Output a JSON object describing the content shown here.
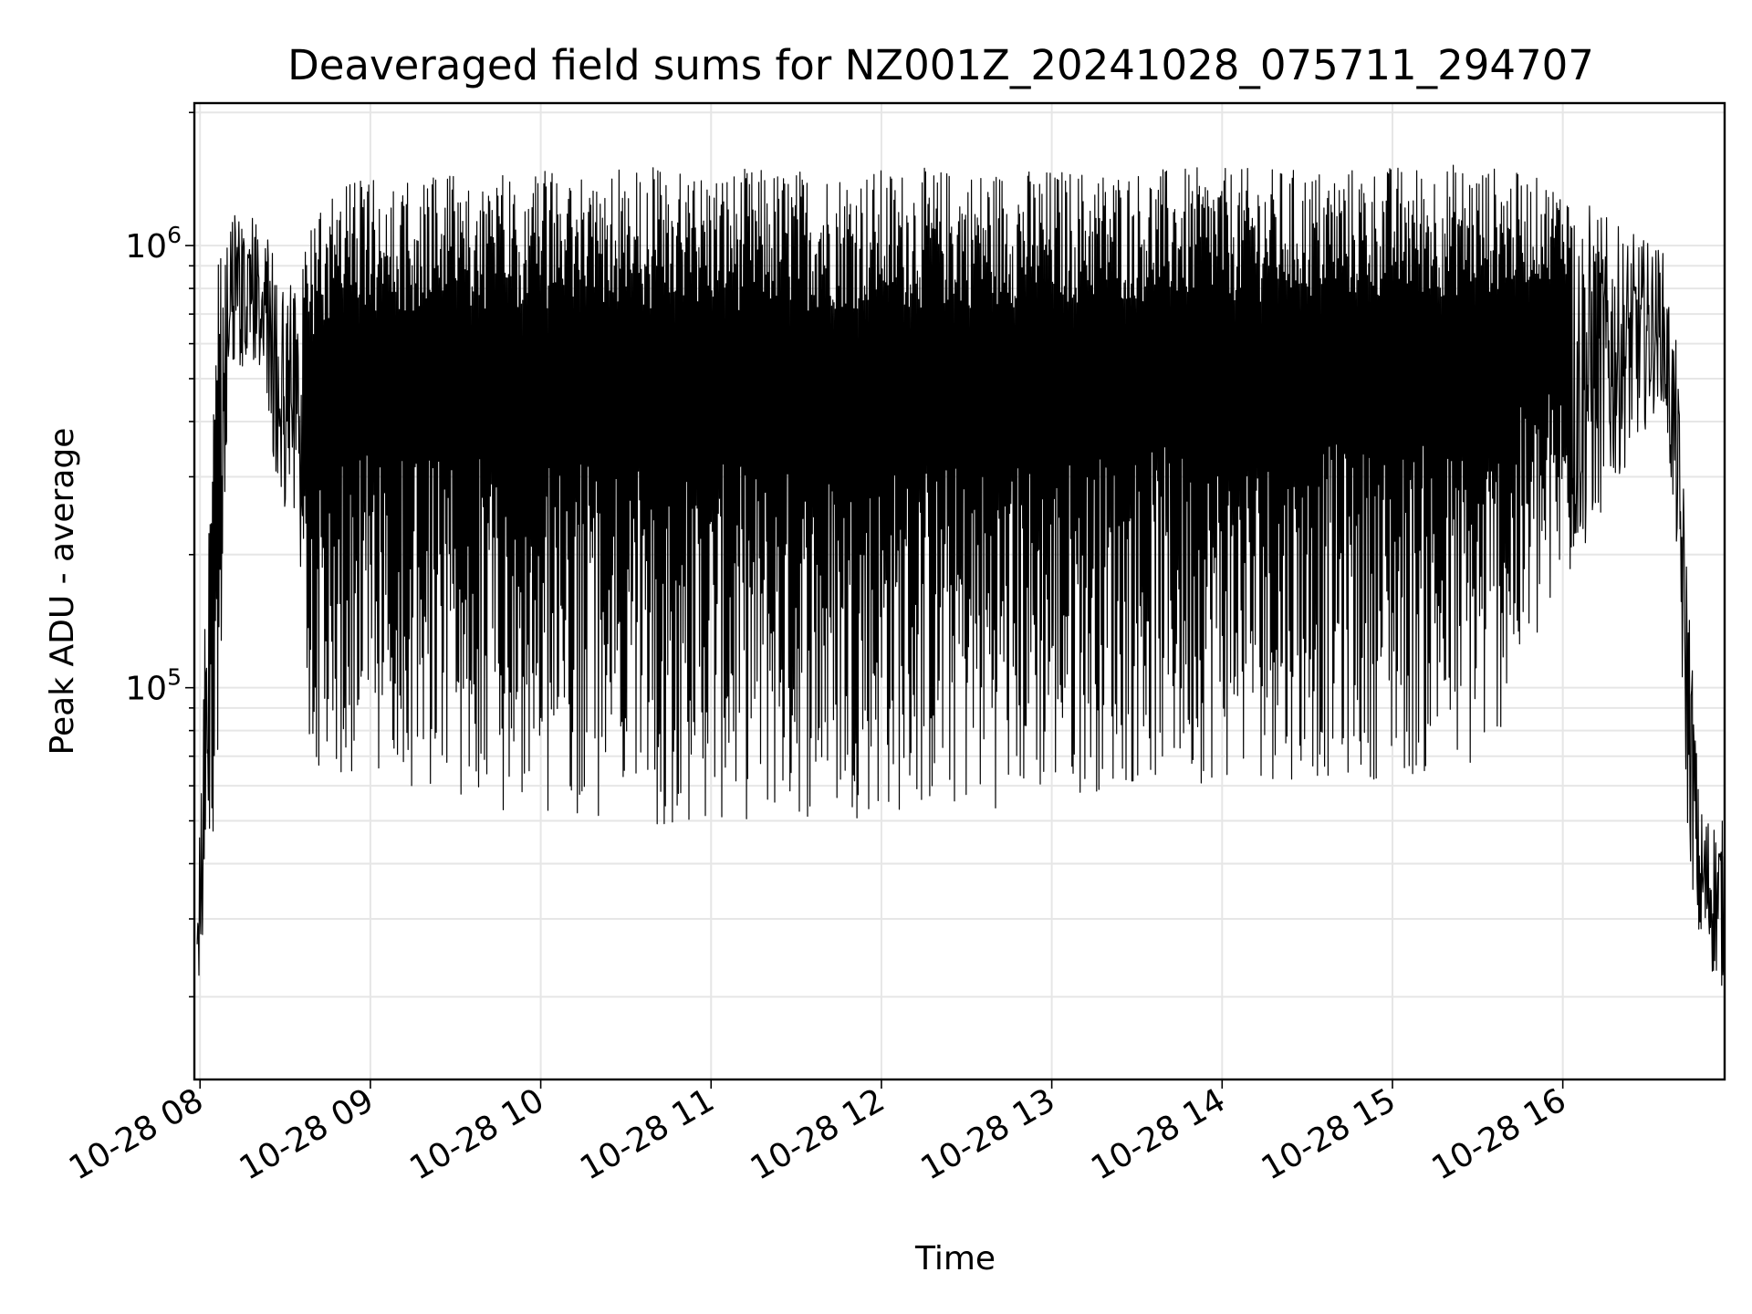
{
  "chart_data": {
    "type": "line",
    "title": "Deaveraged field sums for NZ001Z_20241028_075711_294707",
    "xlabel": "Time",
    "ylabel": "Peak ADU - average",
    "yscale": "log",
    "ylim": [
      13000,
      2100000
    ],
    "xlim": [
      "2024-10-28 07:58",
      "2024-10-28 16:57"
    ],
    "grid": true,
    "legend": "none",
    "line_color": "#000000",
    "x_ticks": [
      {
        "time": "2024-10-28 08:00",
        "label": "10-28 08"
      },
      {
        "time": "2024-10-28 09:00",
        "label": "10-28 09"
      },
      {
        "time": "2024-10-28 10:00",
        "label": "10-28 10"
      },
      {
        "time": "2024-10-28 11:00",
        "label": "10-28 11"
      },
      {
        "time": "2024-10-28 12:00",
        "label": "10-28 12"
      },
      {
        "time": "2024-10-28 13:00",
        "label": "10-28 13"
      },
      {
        "time": "2024-10-28 14:00",
        "label": "10-28 14"
      },
      {
        "time": "2024-10-28 15:00",
        "label": "10-28 15"
      },
      {
        "time": "2024-10-28 16:00",
        "label": "10-28 16"
      }
    ],
    "y_ticks": [
      {
        "value": 100000,
        "base": "10",
        "exp": "5"
      },
      {
        "value": 1000000,
        "base": "10",
        "exp": "6"
      }
    ],
    "series": [
      {
        "envelope": [
          {
            "time": "2024-10-28 07:59",
            "low": 19000,
            "high": 60000
          },
          {
            "time": "2024-10-28 08:03",
            "low": 30000,
            "high": 250000
          },
          {
            "time": "2024-10-28 08:06",
            "low": 55000,
            "high": 900000
          },
          {
            "time": "2024-10-28 08:10",
            "low": 500000,
            "high": 1200000
          },
          {
            "time": "2024-10-28 08:20",
            "low": 550000,
            "high": 1150000
          },
          {
            "time": "2024-10-28 08:27",
            "low": 300000,
            "high": 950000
          },
          {
            "time": "2024-10-28 08:35",
            "low": 150000,
            "high": 850000
          },
          {
            "time": "2024-10-28 08:40",
            "low": 60000,
            "high": 1200000
          },
          {
            "time": "2024-10-28 08:50",
            "low": 62000,
            "high": 1400000
          },
          {
            "time": "2024-10-28 09:30",
            "low": 55000,
            "high": 1450000
          },
          {
            "time": "2024-10-28 10:30",
            "low": 48000,
            "high": 1500000
          },
          {
            "time": "2024-10-28 11:30",
            "low": 50000,
            "high": 1500000
          },
          {
            "time": "2024-10-28 12:30",
            "low": 52000,
            "high": 1500000
          },
          {
            "time": "2024-10-28 13:30",
            "low": 60000,
            "high": 1500000
          },
          {
            "time": "2024-10-28 14:30",
            "low": 62000,
            "high": 1500000
          },
          {
            "time": "2024-10-28 15:30",
            "low": 62000,
            "high": 1550000
          },
          {
            "time": "2024-10-28 16:05",
            "low": 180000,
            "high": 1350000
          },
          {
            "time": "2024-10-28 16:20",
            "low": 300000,
            "high": 1100000
          },
          {
            "time": "2024-10-28 16:35",
            "low": 450000,
            "high": 1000000
          },
          {
            "time": "2024-10-28 16:40",
            "low": 200000,
            "high": 600000
          },
          {
            "time": "2024-10-28 16:44",
            "low": 45000,
            "high": 200000
          },
          {
            "time": "2024-10-28 16:48",
            "low": 25000,
            "high": 55000
          },
          {
            "time": "2024-10-28 16:57",
            "low": 20000,
            "high": 50000
          }
        ]
      }
    ]
  }
}
